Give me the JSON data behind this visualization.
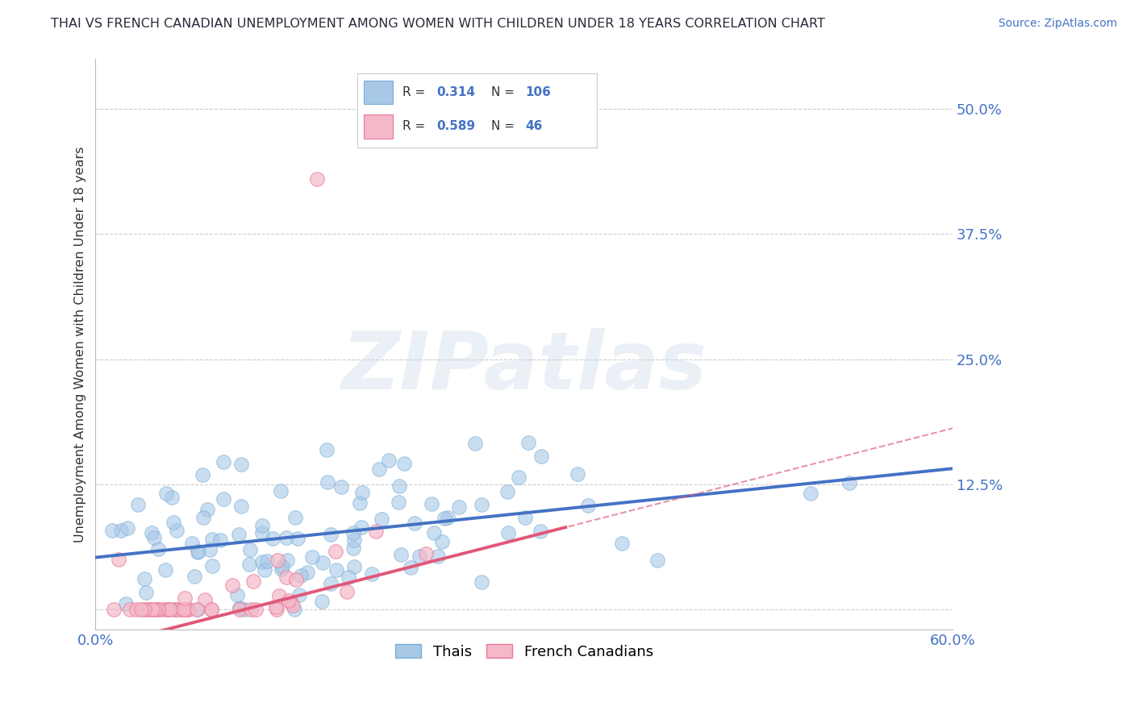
{
  "title": "THAI VS FRENCH CANADIAN UNEMPLOYMENT AMONG WOMEN WITH CHILDREN UNDER 18 YEARS CORRELATION CHART",
  "source_text": "Source: ZipAtlas.com",
  "ylabel": "Unemployment Among Women with Children Under 18 years",
  "xlim": [
    0.0,
    0.6
  ],
  "ylim": [
    -0.02,
    0.55
  ],
  "xticks": [
    0.0,
    0.1,
    0.2,
    0.3,
    0.4,
    0.5,
    0.6
  ],
  "xticklabels": [
    "0.0%",
    "",
    "",
    "",
    "",
    "",
    "60.0%"
  ],
  "yticks": [
    0.0,
    0.125,
    0.25,
    0.375,
    0.5
  ],
  "yticklabels": [
    "",
    "12.5%",
    "25.0%",
    "37.5%",
    "50.0%"
  ],
  "grid_color": "#cccccc",
  "background_color": "#ffffff",
  "thai_color": "#a8c8e8",
  "thai_edge_color": "#7aafd4",
  "fc_color": "#f4b8c8",
  "fc_edge_color": "#e87898",
  "thai_R": 0.314,
  "thai_N": 106,
  "fc_R": 0.589,
  "fc_N": 46,
  "thai_line_color": "#4472c4",
  "fc_line_color": "#e05878",
  "thai_intercept": 0.052,
  "thai_slope": 0.148,
  "fc_intercept": -0.038,
  "fc_slope": 0.365,
  "watermark": "ZIPatlas",
  "text_blue": "#4472c4",
  "text_dark": "#2a2a3a",
  "tick_color": "#4472c4"
}
